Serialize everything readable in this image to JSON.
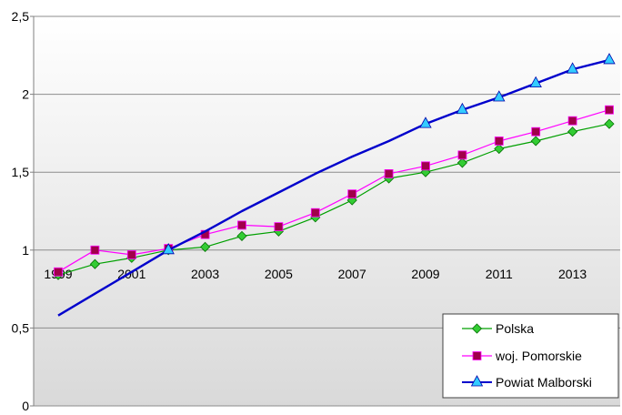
{
  "chart_data": {
    "type": "line",
    "x_tick_labels": [
      "1999",
      "2001",
      "2003",
      "2005",
      "2007",
      "2009",
      "2011",
      "2013"
    ],
    "y_tick_labels": [
      "0",
      "0,5",
      "1",
      "1,5",
      "2",
      "2,5"
    ],
    "ylim": [
      0,
      2.5
    ],
    "xlim": [
      1999,
      2014
    ],
    "grid": "horizontal",
    "legend_position": "bottom-right",
    "series": [
      {
        "name": "Polska",
        "color": "#00a000",
        "marker_color": "#33cc33",
        "marker": "diamond",
        "x": [
          1999,
          2000,
          2001,
          2002,
          2003,
          2004,
          2005,
          2006,
          2007,
          2008,
          2009,
          2010,
          2011,
          2012,
          2013,
          2014
        ],
        "y": [
          0.84,
          0.91,
          0.95,
          1.0,
          1.02,
          1.09,
          1.12,
          1.21,
          1.32,
          1.46,
          1.5,
          1.56,
          1.65,
          1.7,
          1.76,
          1.81
        ]
      },
      {
        "name": "woj. Pomorskie",
        "color": "#ff00ff",
        "marker_color": "#a0004a",
        "marker": "square",
        "x": [
          1999,
          2000,
          2001,
          2002,
          2003,
          2004,
          2005,
          2006,
          2007,
          2008,
          2009,
          2010,
          2011,
          2012,
          2013,
          2014
        ],
        "y": [
          0.86,
          1.0,
          0.97,
          1.01,
          1.1,
          1.16,
          1.15,
          1.24,
          1.36,
          1.49,
          1.54,
          1.61,
          1.7,
          1.76,
          1.83,
          1.9
        ]
      },
      {
        "name": "Powiat Malborski",
        "color": "#0000cc",
        "marker_color": "#33ccff",
        "marker": "triangle",
        "x": [
          1999,
          2000,
          2001,
          2002,
          2003,
          2004,
          2005,
          2006,
          2007,
          2008,
          2009,
          2010,
          2011,
          2012,
          2013,
          2014
        ],
        "y": [
          0.58,
          0.72,
          0.86,
          1.0,
          1.12,
          1.25,
          1.37,
          1.49,
          1.6,
          1.7,
          1.81,
          1.9,
          1.98,
          2.07,
          2.16,
          2.22
        ],
        "markers_at": [
          1999,
          2000,
          2001,
          2002,
          2009,
          2010,
          2011,
          2012,
          2013,
          2014
        ],
        "hide_markers_before": 2002
      }
    ]
  }
}
